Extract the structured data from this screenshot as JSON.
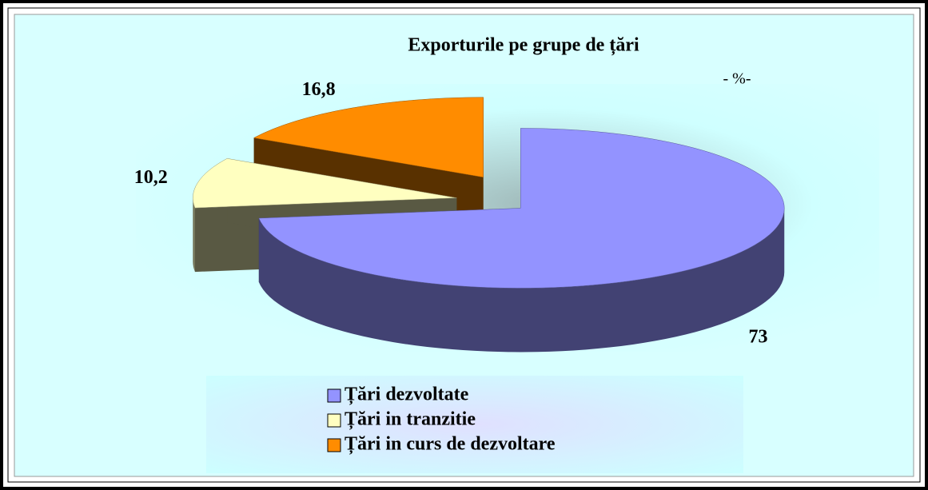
{
  "chart_data": {
    "type": "pie",
    "title": "Exporturile pe grupe de țări",
    "unit_label": "- %-",
    "categories": [
      "Țări dezvoltate",
      "Țări in tranzitie",
      "Țări in curs de dezvoltare"
    ],
    "values": [
      73,
      10.2,
      16.8
    ],
    "value_labels": [
      "73",
      "10,2",
      "16,8"
    ],
    "colors": [
      "#9393ff",
      "#ffffc0",
      "#ff8c00"
    ],
    "legend": "bottom"
  }
}
